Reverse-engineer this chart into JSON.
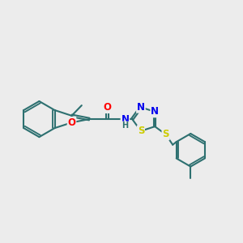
{
  "background_color": "#ececec",
  "bond_color": "#2d7070",
  "bond_width": 1.5,
  "atom_colors": {
    "O": "#ff0000",
    "N": "#0000ee",
    "S": "#cccc00",
    "C": "#2d7070",
    "H": "#2d7070"
  },
  "font_size_atom": 8.5,
  "font_size_h": 7.0
}
